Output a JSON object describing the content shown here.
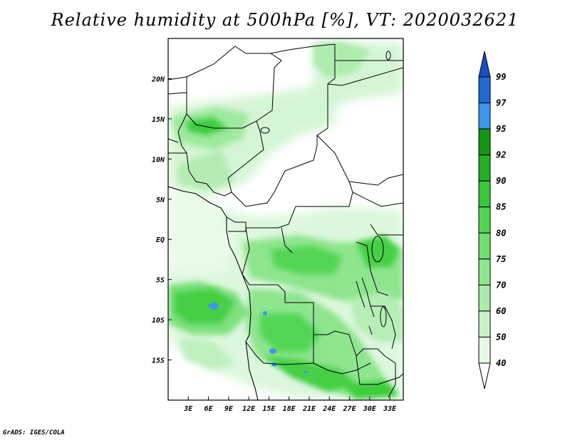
{
  "title": "Relative humidity at 500hPa [%], VT: 2020032621",
  "credit": "GrADS: IGES/COLA",
  "map": {
    "lon_range": [
      0,
      35
    ],
    "lat_range": [
      -20,
      25
    ],
    "lat_ticks": [
      {
        "value": 20,
        "label": "20N"
      },
      {
        "value": 15,
        "label": "15N"
      },
      {
        "value": 10,
        "label": "10N"
      },
      {
        "value": 5,
        "label": "5N"
      },
      {
        "value": 0,
        "label": "EQ"
      },
      {
        "value": -5,
        "label": "5S"
      },
      {
        "value": -10,
        "label": "10S"
      },
      {
        "value": -15,
        "label": "15S"
      }
    ],
    "lon_ticks": [
      {
        "value": 3,
        "label": "3E"
      },
      {
        "value": 6,
        "label": "6E"
      },
      {
        "value": 9,
        "label": "9E"
      },
      {
        "value": 12,
        "label": "12E"
      },
      {
        "value": 15,
        "label": "15E"
      },
      {
        "value": 18,
        "label": "18E"
      },
      {
        "value": 21,
        "label": "21E"
      },
      {
        "value": 24,
        "label": "24E"
      },
      {
        "value": 27,
        "label": "27E"
      },
      {
        "value": 30,
        "label": "30E"
      },
      {
        "value": 33,
        "label": "33E"
      }
    ]
  },
  "colorbar": {
    "levels": [
      "40",
      "50",
      "60",
      "70",
      "75",
      "80",
      "85",
      "90",
      "92",
      "95",
      "97",
      "99"
    ],
    "colors": [
      "#ffffff",
      "#e5f9e5",
      "#c9f2c9",
      "#a9eba9",
      "#8de68d",
      "#6fdf6f",
      "#52d652",
      "#38c838",
      "#23b023",
      "#139713",
      "#3c97ef",
      "#2269d6",
      "#1c4fbf"
    ]
  }
}
